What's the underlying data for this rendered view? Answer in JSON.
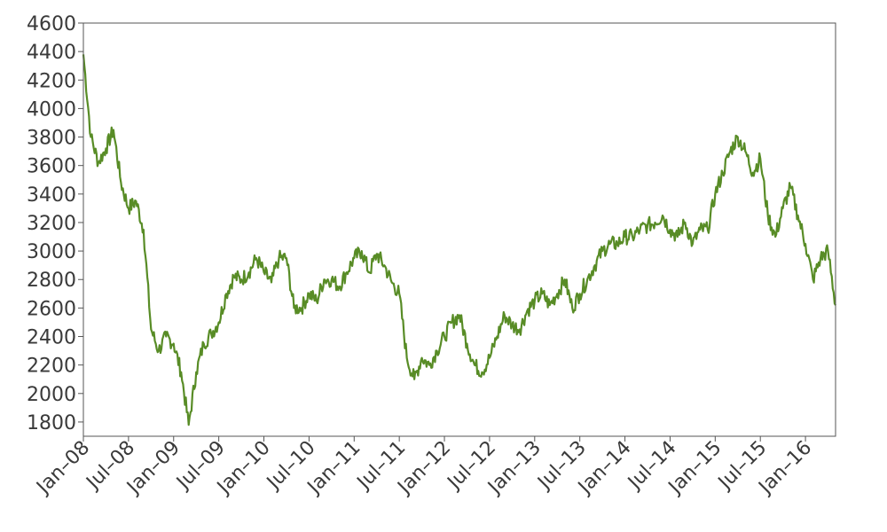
{
  "chart_data": {
    "type": "line",
    "title": "",
    "xlabel": "",
    "ylabel": "",
    "xlim": [
      "2008-01",
      "2016-05"
    ],
    "ylim": [
      1700,
      4600
    ],
    "grid": false,
    "line_color": "#588c26",
    "x_tick_labels": [
      {
        "date": "2008-01",
        "label": "Jan–08"
      },
      {
        "date": "2008-07",
        "label": "Jul–08"
      },
      {
        "date": "2009-01",
        "label": "Jan–09"
      },
      {
        "date": "2009-07",
        "label": "Jul–09"
      },
      {
        "date": "2010-01",
        "label": "Jan–10"
      },
      {
        "date": "2010-07",
        "label": "Jul–10"
      },
      {
        "date": "2011-01",
        "label": "Jan–11"
      },
      {
        "date": "2011-07",
        "label": "Jul–11"
      },
      {
        "date": "2012-01",
        "label": "Jan–12"
      },
      {
        "date": "2012-07",
        "label": "Jul–12"
      },
      {
        "date": "2013-01",
        "label": "Jan–13"
      },
      {
        "date": "2013-07",
        "label": "Jul–13"
      },
      {
        "date": "2014-01",
        "label": "Jan–14"
      },
      {
        "date": "2014-07",
        "label": "Jul–14"
      },
      {
        "date": "2015-01",
        "label": "Jan–15"
      },
      {
        "date": "2015-07",
        "label": "Jul–15"
      },
      {
        "date": "2016-01",
        "label": "Jan–16"
      }
    ],
    "y_ticks": [
      1800,
      2000,
      2200,
      2400,
      2600,
      2800,
      3000,
      3200,
      3400,
      3600,
      3800,
      4000,
      4200,
      4400,
      4600
    ],
    "series": [
      {
        "points": [
          [
            "2008-01",
            4380
          ],
          [
            "2008-02",
            3800
          ],
          [
            "2008-03",
            3620
          ],
          [
            "2008-04",
            3720
          ],
          [
            "2008-05",
            3850
          ],
          [
            "2008-06",
            3480
          ],
          [
            "2008-07",
            3300
          ],
          [
            "2008-08",
            3350
          ],
          [
            "2008-09",
            3150
          ],
          [
            "2008-10",
            2450
          ],
          [
            "2008-11",
            2300
          ],
          [
            "2008-12",
            2400
          ],
          [
            "2009-01",
            2350
          ],
          [
            "2009-02",
            2150
          ],
          [
            "2009-03",
            1780
          ],
          [
            "2009-04",
            2150
          ],
          [
            "2009-05",
            2350
          ],
          [
            "2009-06",
            2420
          ],
          [
            "2009-07",
            2500
          ],
          [
            "2009-08",
            2700
          ],
          [
            "2009-09",
            2820
          ],
          [
            "2009-10",
            2800
          ],
          [
            "2009-11",
            2850
          ],
          [
            "2009-12",
            2950
          ],
          [
            "2010-01",
            2850
          ],
          [
            "2010-02",
            2780
          ],
          [
            "2010-03",
            2950
          ],
          [
            "2010-04",
            2950
          ],
          [
            "2010-05",
            2600
          ],
          [
            "2010-06",
            2600
          ],
          [
            "2010-07",
            2700
          ],
          [
            "2010-08",
            2650
          ],
          [
            "2010-09",
            2800
          ],
          [
            "2010-10",
            2800
          ],
          [
            "2010-11",
            2750
          ],
          [
            "2010-12",
            2850
          ],
          [
            "2011-01",
            2950
          ],
          [
            "2011-02",
            3000
          ],
          [
            "2011-03",
            2850
          ],
          [
            "2011-04",
            2980
          ],
          [
            "2011-05",
            2900
          ],
          [
            "2011-06",
            2780
          ],
          [
            "2011-07",
            2700
          ],
          [
            "2011-08",
            2250
          ],
          [
            "2011-09",
            2100
          ],
          [
            "2011-10",
            2250
          ],
          [
            "2011-11",
            2200
          ],
          [
            "2011-12",
            2300
          ],
          [
            "2012-01",
            2400
          ],
          [
            "2012-02",
            2500
          ],
          [
            "2012-03",
            2550
          ],
          [
            "2012-04",
            2350
          ],
          [
            "2012-05",
            2200
          ],
          [
            "2012-06",
            2150
          ],
          [
            "2012-07",
            2250
          ],
          [
            "2012-08",
            2400
          ],
          [
            "2012-09",
            2550
          ],
          [
            "2012-10",
            2480
          ],
          [
            "2012-11",
            2450
          ],
          [
            "2012-12",
            2580
          ],
          [
            "2013-01",
            2650
          ],
          [
            "2013-02",
            2700
          ],
          [
            "2013-03",
            2620
          ],
          [
            "2013-04",
            2700
          ],
          [
            "2013-05",
            2800
          ],
          [
            "2013-06",
            2600
          ],
          [
            "2013-07",
            2700
          ],
          [
            "2013-08",
            2800
          ],
          [
            "2013-09",
            2900
          ],
          [
            "2013-10",
            3000
          ],
          [
            "2013-11",
            3050
          ],
          [
            "2013-12",
            3050
          ],
          [
            "2014-01",
            3100
          ],
          [
            "2014-02",
            3100
          ],
          [
            "2014-03",
            3150
          ],
          [
            "2014-04",
            3180
          ],
          [
            "2014-05",
            3200
          ],
          [
            "2014-06",
            3250
          ],
          [
            "2014-07",
            3150
          ],
          [
            "2014-08",
            3100
          ],
          [
            "2014-09",
            3200
          ],
          [
            "2014-10",
            3050
          ],
          [
            "2014-11",
            3150
          ],
          [
            "2014-12",
            3150
          ],
          [
            "2015-01",
            3400
          ],
          [
            "2015-02",
            3550
          ],
          [
            "2015-03",
            3700
          ],
          [
            "2015-04",
            3800
          ],
          [
            "2015-05",
            3700
          ],
          [
            "2015-06",
            3550
          ],
          [
            "2015-07",
            3650
          ],
          [
            "2015-08",
            3250
          ],
          [
            "2015-09",
            3100
          ],
          [
            "2015-10",
            3300
          ],
          [
            "2015-11",
            3450
          ],
          [
            "2015-12",
            3250
          ],
          [
            "2016-01",
            3050
          ],
          [
            "2016-02",
            2800
          ],
          [
            "2016-03",
            2950
          ],
          [
            "2016-04",
            3000
          ],
          [
            "2016-05",
            2620
          ]
        ]
      }
    ]
  }
}
